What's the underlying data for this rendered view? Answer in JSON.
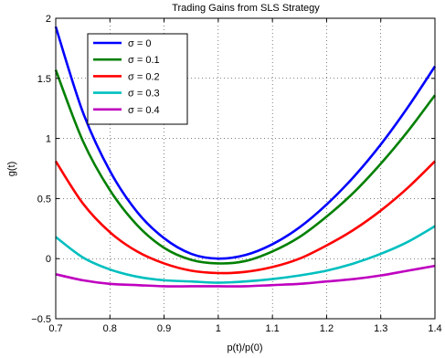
{
  "chart_data": {
    "type": "line",
    "title": "Trading Gains from SLS Strategy",
    "xlabel": "p(t)/p(0)",
    "ylabel": "g(t)",
    "xlim": [
      0.7,
      1.4
    ],
    "ylim": [
      -0.5,
      2
    ],
    "xticks": [
      0.7,
      0.8,
      0.9,
      1,
      1.1,
      1.2,
      1.3,
      1.4
    ],
    "xtick_labels": [
      "0.7",
      "0.8",
      "0.9",
      "1",
      "1.1",
      "1.2",
      "1.3",
      "1.4"
    ],
    "yticks": [
      -0.5,
      0,
      0.5,
      1,
      1.5,
      2
    ],
    "ytick_labels": [
      "−0.5",
      "0",
      "0.5",
      "1",
      "1.5",
      "2"
    ],
    "grid": true,
    "legend_position": "top-left",
    "x": [
      0.7,
      0.75,
      0.8,
      0.85,
      0.9,
      0.95,
      1.0,
      1.05,
      1.1,
      1.15,
      1.2,
      1.25,
      1.3,
      1.35,
      1.4
    ],
    "series": [
      {
        "name": "σ = 0",
        "color": "#0000ff",
        "values": [
          1.93,
          1.22,
          0.73,
          0.39,
          0.17,
          0.04,
          0.0,
          0.03,
          0.12,
          0.26,
          0.45,
          0.68,
          0.95,
          1.26,
          1.6
        ]
      },
      {
        "name": "σ = 0.1",
        "color": "#008000",
        "values": [
          1.57,
          0.98,
          0.57,
          0.28,
          0.09,
          -0.01,
          -0.04,
          -0.02,
          0.06,
          0.18,
          0.35,
          0.55,
          0.79,
          1.06,
          1.36
        ]
      },
      {
        "name": "σ = 0.2",
        "color": "#ff0000",
        "values": [
          0.81,
          0.46,
          0.22,
          0.06,
          -0.04,
          -0.1,
          -0.12,
          -0.11,
          -0.07,
          0.0,
          0.11,
          0.24,
          0.4,
          0.59,
          0.81
        ]
      },
      {
        "name": "σ = 0.3",
        "color": "#00bfbf",
        "values": [
          0.18,
          0.01,
          -0.09,
          -0.15,
          -0.18,
          -0.19,
          -0.2,
          -0.19,
          -0.17,
          -0.14,
          -0.1,
          -0.04,
          0.04,
          0.14,
          0.27
        ]
      },
      {
        "name": "σ = 0.4",
        "color": "#bf00bf",
        "values": [
          -0.13,
          -0.18,
          -0.21,
          -0.22,
          -0.23,
          -0.23,
          -0.23,
          -0.23,
          -0.22,
          -0.21,
          -0.19,
          -0.17,
          -0.14,
          -0.1,
          -0.06
        ]
      }
    ]
  }
}
